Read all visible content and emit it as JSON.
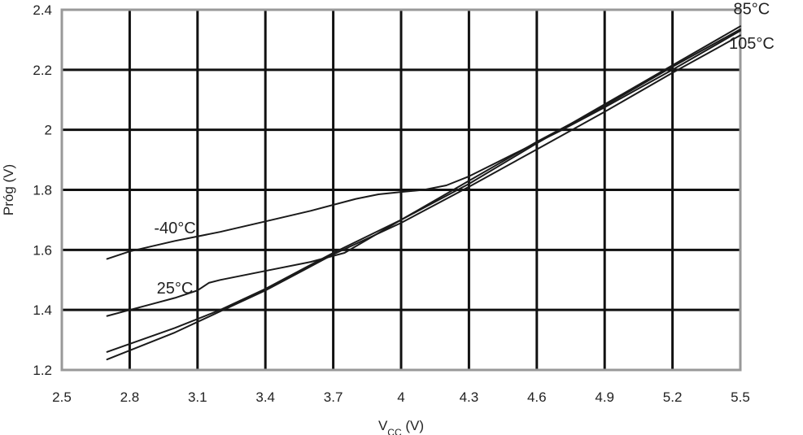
{
  "chart_data": {
    "type": "line",
    "title": "",
    "xlabel": "V",
    "xlabel_sub": "CC",
    "xlabel_unit": " (V)",
    "ylabel": "Próg (V)",
    "xlim": [
      2.5,
      5.5
    ],
    "ylim": [
      1.2,
      2.4
    ],
    "xticks": [
      2.5,
      2.8,
      3.1,
      3.4,
      3.7,
      4,
      4.3,
      4.6,
      4.9,
      5.2,
      5.5
    ],
    "xtick_labels": [
      "2.5",
      "2.8",
      "3.1",
      "3.4",
      "3.7",
      "4",
      "4.3",
      "4.6",
      "4.9",
      "5.2",
      "5.5"
    ],
    "yticks": [
      1.2,
      1.4,
      1.6,
      1.8,
      2,
      2.2,
      2.4
    ],
    "ytick_labels": [
      "1.2",
      "1.4",
      "1.6",
      "1.8",
      "2",
      "2.2",
      "2.4"
    ],
    "grid": true,
    "series": [
      {
        "name": "-40°C",
        "x": [
          2.7,
          2.8,
          3.0,
          3.2,
          3.4,
          3.6,
          3.8,
          3.9,
          4.0,
          4.1,
          4.2,
          4.3,
          4.5,
          4.7,
          4.9,
          5.2,
          5.5
        ],
        "y": [
          1.57,
          1.595,
          1.63,
          1.66,
          1.695,
          1.73,
          1.77,
          1.785,
          1.793,
          1.8,
          1.815,
          1.845,
          1.92,
          1.995,
          2.075,
          2.2,
          2.33
        ]
      },
      {
        "name": "25°C",
        "x": [
          2.7,
          2.8,
          2.9,
          3.0,
          3.1,
          3.15,
          3.2,
          3.4,
          3.6,
          3.75,
          4.0,
          4.3,
          4.6,
          4.9,
          5.2,
          5.5
        ],
        "y": [
          1.38,
          1.4,
          1.42,
          1.44,
          1.465,
          1.49,
          1.5,
          1.53,
          1.56,
          1.59,
          1.7,
          1.83,
          1.96,
          2.08,
          2.21,
          2.335
        ]
      },
      {
        "name": "85°C",
        "x": [
          2.7,
          3.0,
          3.2,
          3.4,
          3.7,
          4.0,
          4.3,
          4.6,
          4.9,
          5.2,
          5.5
        ],
        "y": [
          1.26,
          1.34,
          1.4,
          1.47,
          1.59,
          1.7,
          1.82,
          1.955,
          2.085,
          2.215,
          2.345
        ]
      },
      {
        "name": "105°C",
        "x": [
          2.7,
          3.0,
          3.2,
          3.4,
          3.7,
          4.0,
          4.3,
          4.6,
          4.9,
          5.2,
          5.5
        ],
        "y": [
          1.235,
          1.325,
          1.395,
          1.465,
          1.585,
          1.69,
          1.81,
          1.935,
          2.06,
          2.19,
          2.315
        ]
      }
    ],
    "series_labels": [
      {
        "text": "-40°C",
        "x": 3.0,
        "y": 1.655
      },
      {
        "text": "25°C",
        "x": 3.0,
        "y": 1.455
      },
      {
        "text": "85°C",
        "x": 5.55,
        "y": 2.385
      },
      {
        "text": "105°C",
        "x": 5.55,
        "y": 2.27
      }
    ]
  }
}
